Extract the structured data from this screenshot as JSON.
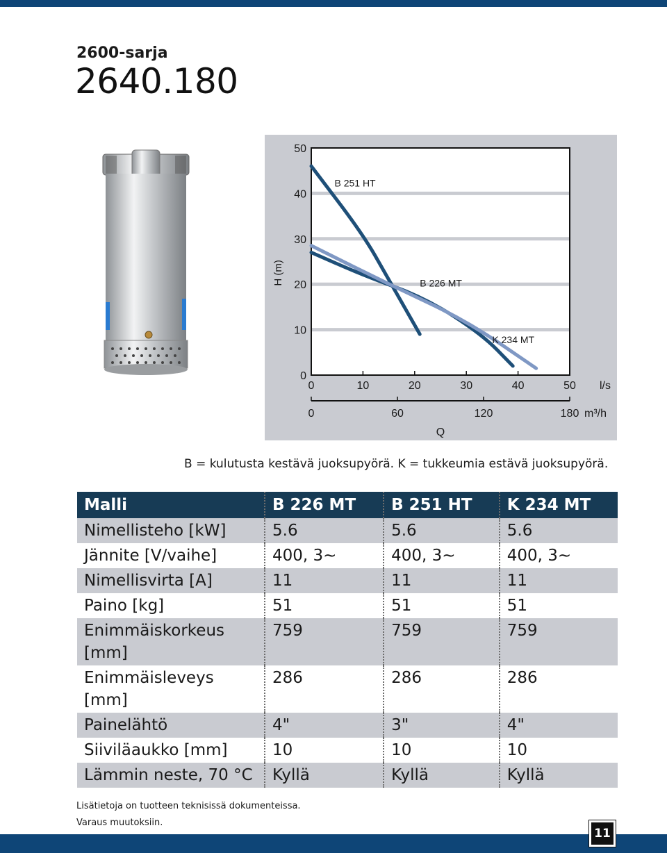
{
  "header": {
    "series": "2600-sarja",
    "model": "2640.180"
  },
  "colors": {
    "brand_bar": "#0e4577",
    "table_header": "#173b55",
    "row_alt": "#c9cbd1",
    "curve_b251": "#1e4f78",
    "curve_b226": "#1e4f78",
    "curve_k234": "#7f98c4"
  },
  "chart_data": {
    "type": "line",
    "ylabel": "H (m)",
    "ylim": [
      0,
      50
    ],
    "yticks": [
      "0",
      "10",
      "20",
      "30",
      "40",
      "50"
    ],
    "xlim": [
      0,
      50
    ],
    "xticks_ls": [
      "0",
      "10",
      "20",
      "30",
      "40",
      "50"
    ],
    "x_unit_ls": "l/s",
    "xticks_m3h": [
      "0",
      "60",
      "120",
      "180"
    ],
    "x_unit_m3h": "m³/h",
    "xlabel": "Q",
    "series": [
      {
        "name": "B 251 HT",
        "x": [
          0,
          10,
          15,
          21
        ],
        "y": [
          46,
          31,
          21,
          9
        ]
      },
      {
        "name": "B 226 MT",
        "x": [
          0,
          10,
          22,
          33,
          39
        ],
        "y": [
          27,
          22,
          17,
          9,
          2
        ]
      },
      {
        "name": "K 234 MT",
        "x": [
          0,
          15,
          30,
          43.5
        ],
        "y": [
          28.5,
          20,
          12,
          1.5
        ]
      }
    ]
  },
  "caption": "B = kulutusta kestävä juoksupyörä. K = tukkeumia estävä juoksupyörä.",
  "table": {
    "headers": [
      "Malli",
      "B 226 MT",
      "B 251 HT",
      "K 234 MT"
    ],
    "rows": [
      [
        "Nimellisteho [kW]",
        "5.6",
        "5.6",
        "5.6"
      ],
      [
        "Jännite [V/vaihe]",
        "400, 3∼",
        "400, 3∼",
        "400, 3∼"
      ],
      [
        "Nimellisvirta [A]",
        "11",
        "11",
        "11"
      ],
      [
        "Paino [kg]",
        "51",
        "51",
        "51"
      ],
      [
        "Enimmäiskorkeus [mm]",
        "759",
        "759",
        "759"
      ],
      [
        "Enimmäisleveys [mm]",
        "286",
        "286",
        "286"
      ],
      [
        "Painelähtö",
        "4\"",
        "3\"",
        "4\""
      ],
      [
        "Siiviläaukko [mm]",
        "10",
        "10",
        "10"
      ],
      [
        "Lämmin neste, 70 °C",
        "Kyllä",
        "Kyllä",
        "Kyllä"
      ]
    ]
  },
  "footer": {
    "line1": "Lisätietoja on tuotteen teknisissä dokumenteissa.",
    "line2": "Varaus muutoksiin.",
    "page": "11"
  }
}
